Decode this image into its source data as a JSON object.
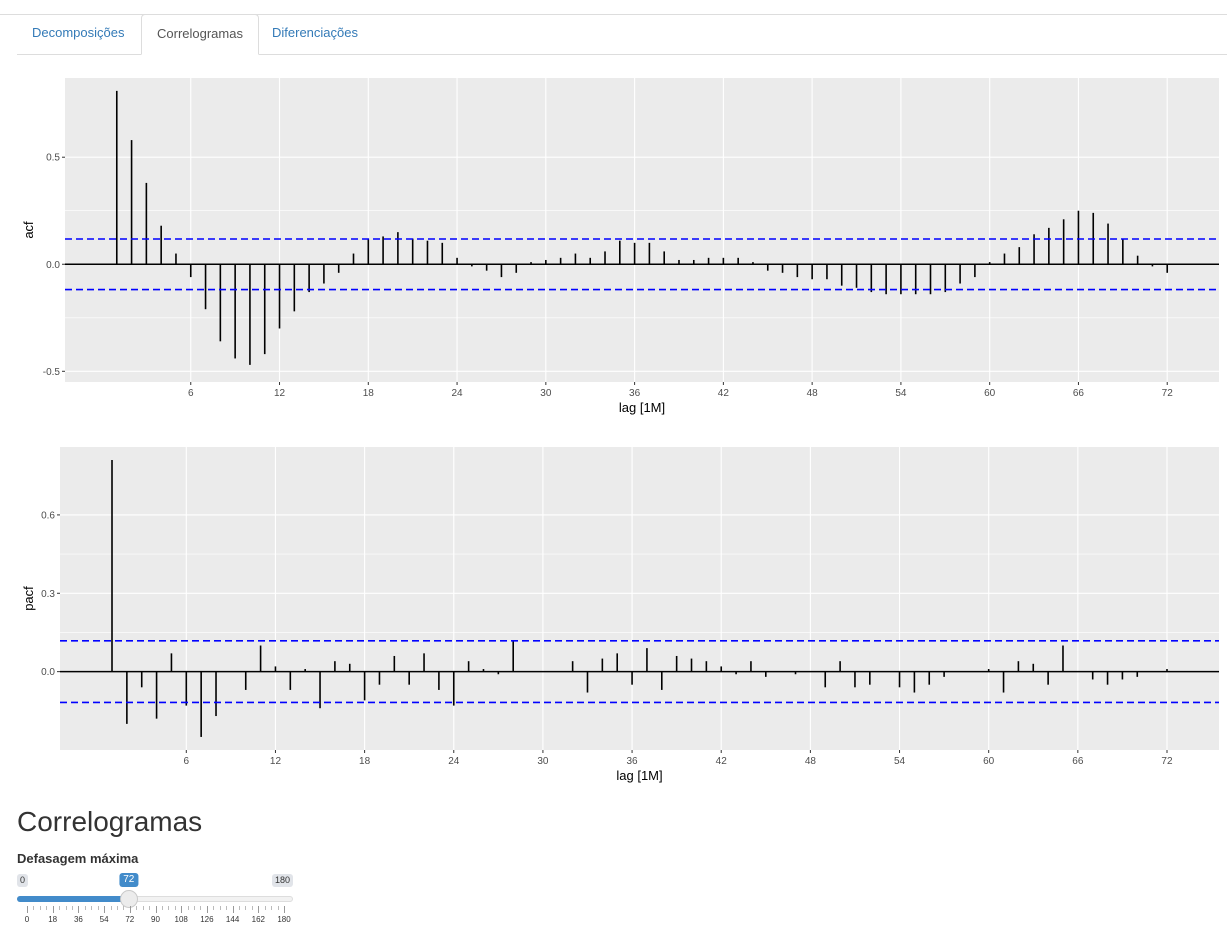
{
  "tabs": [
    {
      "label": "Decomposições",
      "active": false
    },
    {
      "label": "Correlogramas",
      "active": true
    },
    {
      "label": "Diferenciações",
      "active": false
    }
  ],
  "chart_data": [
    {
      "type": "bar",
      "ylabel": "acf",
      "xlabel": "lag [1M]",
      "xticks": [
        6,
        12,
        18,
        24,
        30,
        36,
        42,
        48,
        54,
        60,
        66,
        72
      ],
      "yticks": [
        -0.5,
        0.0,
        0.5
      ],
      "ytick_labels": [
        "-0.5",
        "0.0",
        "0.5"
      ],
      "xlim": [
        -2.5,
        75.5
      ],
      "ylim": [
        -0.55,
        0.87
      ],
      "conf_limit": 0.118,
      "lags": [
        1,
        2,
        3,
        4,
        5,
        6,
        7,
        8,
        9,
        10,
        11,
        12,
        13,
        14,
        15,
        16,
        17,
        18,
        19,
        20,
        21,
        22,
        23,
        24,
        25,
        26,
        27,
        28,
        29,
        30,
        31,
        32,
        33,
        34,
        35,
        36,
        37,
        38,
        39,
        40,
        41,
        42,
        43,
        44,
        45,
        46,
        47,
        48,
        49,
        50,
        51,
        52,
        53,
        54,
        55,
        56,
        57,
        58,
        59,
        60,
        61,
        62,
        63,
        64,
        65,
        66,
        67,
        68,
        69,
        70,
        71,
        72
      ],
      "values": [
        0.81,
        0.58,
        0.38,
        0.18,
        0.05,
        -0.06,
        -0.21,
        -0.36,
        -0.44,
        -0.47,
        -0.42,
        -0.3,
        -0.22,
        -0.13,
        -0.09,
        -0.04,
        0.05,
        0.12,
        0.13,
        0.15,
        0.12,
        0.11,
        0.1,
        0.03,
        -0.01,
        -0.03,
        -0.06,
        -0.04,
        0.01,
        0.02,
        0.03,
        0.05,
        0.03,
        0.06,
        0.11,
        0.1,
        0.1,
        0.06,
        0.02,
        0.02,
        0.03,
        0.03,
        0.03,
        0.01,
        -0.03,
        -0.04,
        -0.06,
        -0.07,
        -0.07,
        -0.1,
        -0.11,
        -0.13,
        -0.14,
        -0.14,
        -0.14,
        -0.14,
        -0.13,
        -0.09,
        -0.06,
        0.01,
        0.05,
        0.08,
        0.14,
        0.17,
        0.21,
        0.25,
        0.24,
        0.19,
        0.12,
        0.04,
        -0.01,
        -0.04
      ],
      "colors": {
        "panel": "#ebebeb",
        "grid": "#ffffff",
        "bar": "#000000",
        "ci": "#0000ff"
      }
    },
    {
      "type": "bar",
      "ylabel": "pacf",
      "xlabel": "lag [1M]",
      "xticks": [
        6,
        12,
        18,
        24,
        30,
        36,
        42,
        48,
        54,
        60,
        66,
        72
      ],
      "yticks": [
        0.0,
        0.3,
        0.6
      ],
      "ytick_labels": [
        "0.0",
        "0.3",
        "0.6"
      ],
      "xlim": [
        -2.5,
        75.5
      ],
      "ylim": [
        -0.3,
        0.86
      ],
      "conf_limit": 0.118,
      "lags": [
        1,
        2,
        3,
        4,
        5,
        6,
        7,
        8,
        9,
        10,
        11,
        12,
        13,
        14,
        15,
        16,
        17,
        18,
        19,
        20,
        21,
        22,
        23,
        24,
        25,
        26,
        27,
        28,
        29,
        30,
        31,
        32,
        33,
        34,
        35,
        36,
        37,
        38,
        39,
        40,
        41,
        42,
        43,
        44,
        45,
        46,
        47,
        48,
        49,
        50,
        51,
        52,
        53,
        54,
        55,
        56,
        57,
        58,
        59,
        60,
        61,
        62,
        63,
        64,
        65,
        66,
        67,
        68,
        69,
        70,
        71,
        72
      ],
      "values": [
        0.81,
        -0.2,
        -0.06,
        -0.18,
        0.07,
        -0.13,
        -0.25,
        -0.17,
        0.0,
        -0.07,
        0.1,
        0.02,
        -0.07,
        0.01,
        -0.14,
        0.04,
        0.03,
        -0.11,
        -0.05,
        0.06,
        -0.05,
        0.07,
        -0.07,
        -0.13,
        0.04,
        0.01,
        -0.01,
        0.12,
        0.0,
        0.0,
        0.0,
        0.04,
        -0.08,
        0.05,
        0.07,
        -0.05,
        0.09,
        -0.07,
        0.06,
        0.05,
        0.04,
        0.02,
        -0.01,
        0.04,
        -0.02,
        0.0,
        -0.01,
        0.0,
        -0.06,
        0.04,
        -0.06,
        -0.05,
        0.0,
        -0.06,
        -0.08,
        -0.05,
        -0.02,
        0.0,
        0.0,
        0.01,
        -0.08,
        0.04,
        0.03,
        -0.05,
        0.1,
        0.0,
        -0.03,
        -0.05,
        -0.03,
        -0.02,
        0.0,
        0.01
      ],
      "colors": {
        "panel": "#ebebeb",
        "grid": "#ffffff",
        "bar": "#000000",
        "ci": "#0000ff"
      }
    }
  ],
  "section": {
    "title": "Correlogramas"
  },
  "slider": {
    "label": "Defasagem máxima",
    "min": 0,
    "max": 180,
    "value": 72,
    "min_label": "0",
    "max_label": "180",
    "value_label": "72",
    "grid_labels": [
      "0",
      "18",
      "36",
      "54",
      "72",
      "90",
      "108",
      "126",
      "144",
      "162",
      "180"
    ],
    "colors": {
      "bar": "#428bca",
      "line": "#f2f2f2",
      "handle": "#ececec"
    }
  }
}
